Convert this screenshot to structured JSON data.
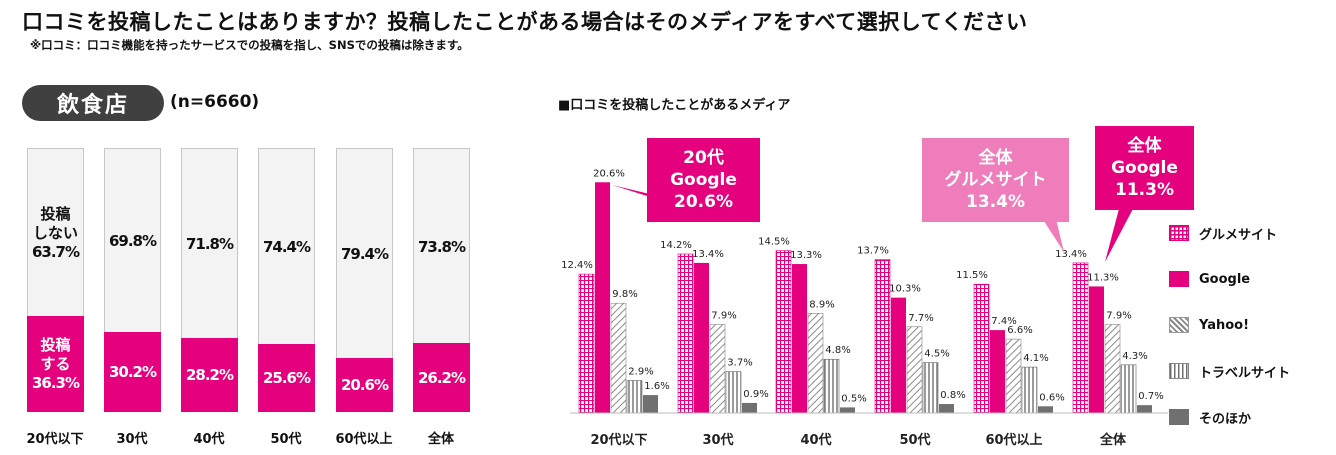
{
  "title": "口コミを投稿したことはありますか？投稿したことがある場合はそのメディアをすべて選択してください",
  "note": "※口コミ：口コミ機能を持ったサービスでの投稿を指し、SNSでの投稿は除きます。",
  "section_label": "飲食店",
  "sample_size": "(n=6660)",
  "stack_labels": {
    "not_posted": [
      "投稿",
      "しない"
    ],
    "posted": [
      "投稿",
      "する"
    ]
  },
  "colors": {
    "magenta": "#e5007e",
    "pink": "#f07dbb",
    "grey": "#707070",
    "dark": "#404040"
  },
  "chart_data": [
    {
      "type": "bar",
      "stacked": true,
      "title": "",
      "categories": [
        "20代以下",
        "30代",
        "40代",
        "50代",
        "60代以上",
        "全体"
      ],
      "series": [
        {
          "name": "投稿する",
          "values": [
            36.3,
            30.2,
            28.2,
            25.6,
            20.6,
            26.2
          ],
          "labels": [
            "36.3%",
            "30.2%",
            "28.2%",
            "25.6%",
            "20.6%",
            "26.2%"
          ]
        },
        {
          "name": "投稿しない",
          "values": [
            63.7,
            69.8,
            71.8,
            74.4,
            79.4,
            73.8
          ],
          "labels": [
            "63.7%",
            "69.8%",
            "71.8%",
            "74.4%",
            "79.4%",
            "73.8%"
          ]
        }
      ],
      "ylim": [
        0,
        100
      ]
    },
    {
      "type": "bar",
      "title": "■口コミを投稿したことがあるメディア",
      "categories": [
        "20代以下",
        "30代",
        "40代",
        "50代",
        "60代以上",
        "全体"
      ],
      "series": [
        {
          "name": "グルメサイト",
          "pattern": "grid",
          "values": [
            12.4,
            14.2,
            14.5,
            13.7,
            11.5,
            13.4
          ],
          "labels": [
            "12.4%",
            "14.2%",
            "14.5%",
            "13.7%",
            "11.5%",
            "13.4%"
          ]
        },
        {
          "name": "Google",
          "pattern": "solid",
          "values": [
            20.6,
            13.4,
            13.3,
            10.3,
            7.4,
            11.3
          ],
          "labels": [
            "20.6%",
            "13.4%",
            "13.3%",
            "10.3%",
            "7.4%",
            "11.3%"
          ]
        },
        {
          "name": "Yahoo!",
          "pattern": "diagonal",
          "values": [
            9.8,
            7.9,
            8.9,
            7.7,
            6.6,
            7.9
          ],
          "labels": [
            "9.8%",
            "7.9%",
            "8.9%",
            "7.7%",
            "6.6%",
            "7.9%"
          ]
        },
        {
          "name": "トラベルサイト",
          "pattern": "vertical",
          "values": [
            2.9,
            3.7,
            4.8,
            4.5,
            4.1,
            4.3
          ],
          "labels": [
            "2.9%",
            "3.7%",
            "4.8%",
            "4.5%",
            "4.1%",
            "4.3%"
          ]
        },
        {
          "name": "そのほか",
          "pattern": "grey",
          "values": [
            1.6,
            0.9,
            0.5,
            0.8,
            0.6,
            0.7
          ],
          "labels": [
            "1.6%",
            "0.9%",
            "0.5%",
            "0.8%",
            "0.6%",
            "0.7%"
          ]
        }
      ],
      "ylim": [
        0,
        22
      ],
      "annotations": [
        {
          "lines": [
            "20代",
            "Google",
            "20.6%"
          ],
          "color": "#e5007e"
        },
        {
          "lines": [
            "全体",
            "グルメサイト",
            "13.4%"
          ],
          "color": "#f07dbb"
        },
        {
          "lines": [
            "全体",
            "Google",
            "11.3%"
          ],
          "color": "#e5007e"
        }
      ]
    }
  ]
}
